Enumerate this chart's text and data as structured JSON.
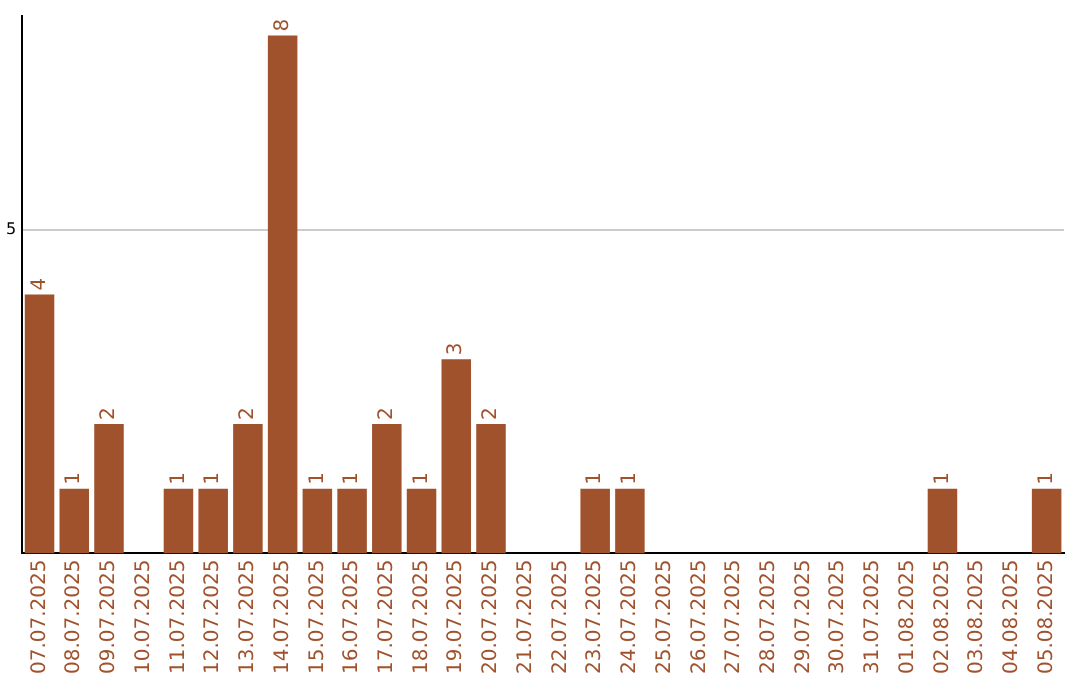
{
  "chart_data": {
    "type": "bar",
    "categories": [
      "07.07.2025",
      "08.07.2025",
      "09.07.2025",
      "10.07.2025",
      "11.07.2025",
      "12.07.2025",
      "13.07.2025",
      "14.07.2025",
      "15.07.2025",
      "16.07.2025",
      "17.07.2025",
      "18.07.2025",
      "19.07.2025",
      "20.07.2025",
      "21.07.2025",
      "22.07.2025",
      "23.07.2025",
      "24.07.2025",
      "25.07.2025",
      "26.07.2025",
      "27.07.2025",
      "28.07.2025",
      "29.07.2025",
      "30.07.2025",
      "31.07.2025",
      "01.08.2025",
      "02.08.2025",
      "03.08.2025",
      "04.08.2025",
      "05.08.2025"
    ],
    "values": [
      4,
      1,
      2,
      0,
      1,
      1,
      2,
      8,
      1,
      1,
      2,
      1,
      3,
      2,
      0,
      0,
      1,
      1,
      0,
      0,
      0,
      0,
      0,
      0,
      0,
      0,
      1,
      0,
      0,
      1
    ],
    "value_labels": [
      "4",
      "1",
      "2",
      null,
      "1",
      "1",
      "2",
      "8",
      "1",
      "1",
      "2",
      "1",
      "3",
      "2",
      null,
      null,
      "1",
      "1",
      null,
      null,
      null,
      null,
      null,
      null,
      null,
      null,
      "1",
      null,
      null,
      "1"
    ],
    "color": "#a0522d",
    "ylim": [
      0,
      8.3
    ],
    "yticks": [
      5
    ],
    "grid": "y",
    "legend": false
  }
}
